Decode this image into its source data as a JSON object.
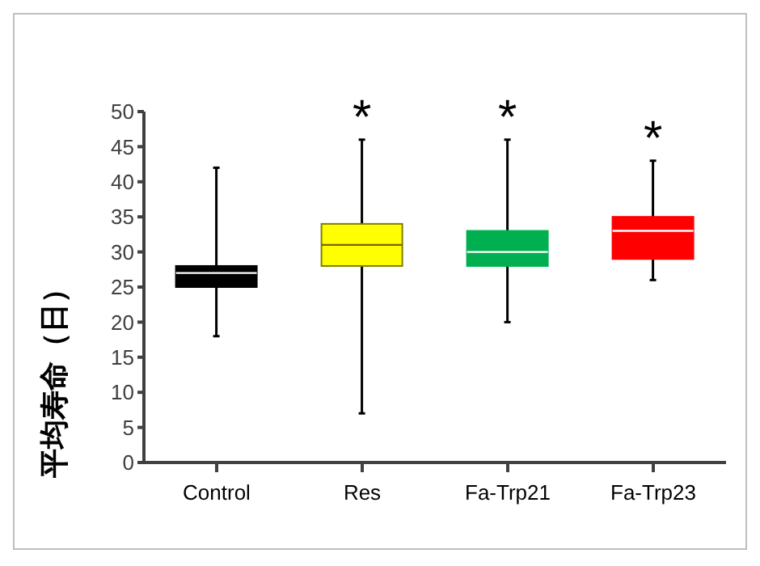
{
  "chart_data": {
    "type": "box",
    "ylabel": "平均寿命（日）",
    "categories": [
      "Control",
      "Res",
      "Fa-Trp21",
      "Fa-Trp23"
    ],
    "boxes": [
      {
        "low": 18,
        "q1": 25,
        "median": 27,
        "q3": 28,
        "high": 42
      },
      {
        "low": 7,
        "q1": 28,
        "median": 31,
        "q3": 34,
        "high": 46
      },
      {
        "low": 20,
        "q1": 28,
        "median": 30,
        "q3": 33,
        "high": 46
      },
      {
        "low": 26,
        "q1": 29,
        "median": 33,
        "q3": 35,
        "high": 43
      }
    ],
    "colors": [
      "#000000",
      "#ffff00",
      "#00b050",
      "#ff0000"
    ],
    "ylim": [
      0,
      50
    ],
    "yticks": [
      0,
      5,
      10,
      15,
      20,
      25,
      30,
      35,
      40,
      45,
      50
    ],
    "annotations": [
      "*",
      "*",
      "*"
    ],
    "grid": false,
    "legend": false
  }
}
